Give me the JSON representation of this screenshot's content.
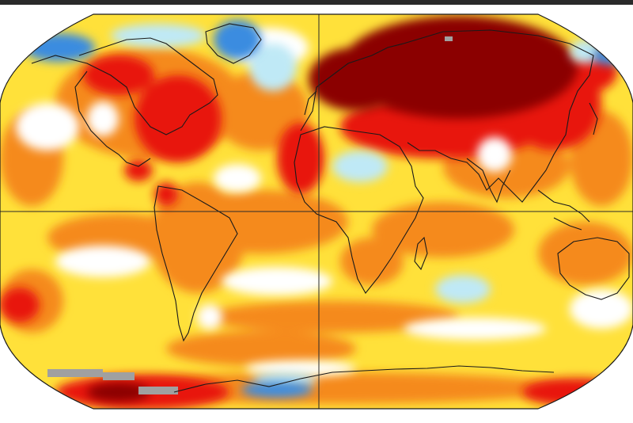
{
  "map": {
    "type": "temperature-anomaly-map",
    "projection": "robinson",
    "legend": "none",
    "palette": {
      "dark_red": "#8b0000",
      "red": "#e8170f",
      "orange": "#f58a1f",
      "light_orange": "#fbb33a",
      "yellow": "#ffe13a",
      "pale_yellow": "#fff5a8",
      "white": "#ffffff",
      "light_blue": "#bfe9f6",
      "blue": "#3b8ce0",
      "gray": "#a0a0a0",
      "outline": "#1a1a1a"
    },
    "regions": [
      {
        "name": "siberia",
        "level": "dark_red"
      },
      {
        "name": "europe",
        "level": "dark_red"
      },
      {
        "name": "eastern-north-america",
        "level": "red"
      },
      {
        "name": "sahara",
        "level": "light_blue"
      },
      {
        "name": "south-pacific-west",
        "level": "light_blue"
      },
      {
        "name": "greenland",
        "level": "blue"
      },
      {
        "name": "antarctic-coast",
        "level": "blue"
      },
      {
        "name": "antarctic-interior",
        "level": "gray"
      }
    ]
  }
}
